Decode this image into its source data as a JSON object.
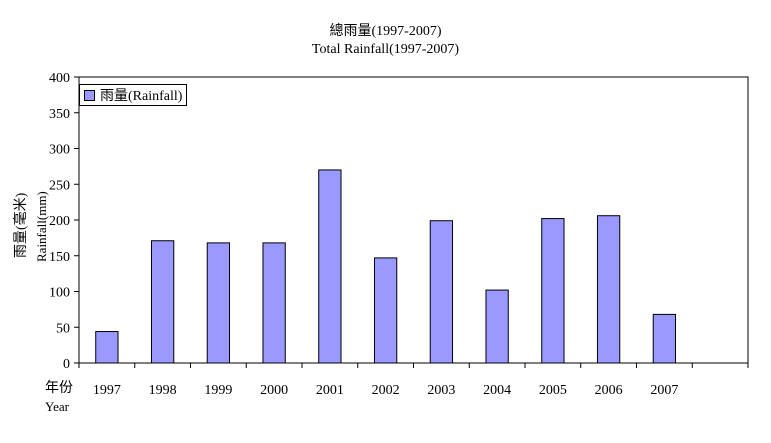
{
  "chart_data": {
    "type": "bar",
    "title": "總雨量(1997-2007)",
    "subtitle": "Total Rainfall(1997-2007)",
    "ylabel_zh": "雨量(毫米)",
    "ylabel_en": "Rainfall(mm)",
    "xlabel_zh": "年份",
    "xlabel_en": "Year",
    "categories": [
      "1997",
      "1998",
      "1999",
      "2000",
      "2001",
      "2002",
      "2003",
      "2004",
      "2005",
      "2006",
      "2007",
      ""
    ],
    "series": [
      {
        "name": "雨量(Rainfall)",
        "color": "#9999ff",
        "values": [
          44,
          171,
          168,
          168,
          270,
          147,
          199,
          102,
          202,
          206,
          68,
          null
        ]
      }
    ],
    "ylim": [
      0,
      400
    ],
    "yticks": [
      0,
      50,
      100,
      150,
      200,
      250,
      300,
      350,
      400
    ],
    "grid": false,
    "legend_position": "top-left"
  }
}
